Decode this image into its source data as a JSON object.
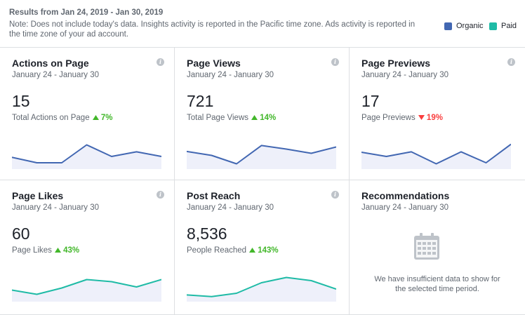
{
  "header": {
    "range_label": "Results from Jan 24, 2019 - Jan 30, 2019",
    "note": "Note: Does not include today's data. Insights activity is reported in the Pacific time zone. Ads activity is reported in the time zone of your ad account.",
    "legend": [
      {
        "label": "Organic",
        "color": "#4267b2"
      },
      {
        "label": "Paid",
        "color": "#1fbba6"
      }
    ]
  },
  "cards": [
    {
      "title": "Actions on Page",
      "date_range": "January 24 - January 30",
      "value": "15",
      "metric_label": "Total Actions on Page",
      "delta": "7%",
      "direction": "up",
      "delta_icon": "triangle-up-icon",
      "color": "#4267b2",
      "series": [
        0.36,
        0.1,
        0.1,
        0.95,
        0.4,
        0.62,
        0.4
      ]
    },
    {
      "title": "Page Views",
      "date_range": "January 24 - January 30",
      "value": "721",
      "metric_label": "Total Page Views",
      "delta": "14%",
      "direction": "up",
      "delta_icon": "triangle-up-icon",
      "color": "#4267b2",
      "series": [
        0.64,
        0.45,
        0.05,
        0.92,
        0.75,
        0.55,
        0.85
      ]
    },
    {
      "title": "Page Previews",
      "date_range": "January 24 - January 30",
      "value": "17",
      "metric_label": "Page Previews",
      "delta": "19%",
      "direction": "down",
      "delta_icon": "triangle-down-icon",
      "color": "#4267b2",
      "series": [
        0.6,
        0.4,
        0.62,
        0.05,
        0.62,
        0.1,
        0.98
      ]
    },
    {
      "title": "Page Likes",
      "date_range": "January 24 - January 30",
      "value": "60",
      "metric_label": "Page Likes",
      "delta": "43%",
      "direction": "up",
      "delta_icon": "triangle-up-icon",
      "color": "#1fbba6",
      "series": [
        0.35,
        0.15,
        0.45,
        0.85,
        0.75,
        0.5,
        0.85
      ]
    },
    {
      "title": "Post Reach",
      "date_range": "January 24 - January 30",
      "value": "8,536",
      "metric_label": "People Reached",
      "delta": "143%",
      "direction": "up",
      "delta_icon": "triangle-up-icon",
      "color": "#1fbba6",
      "series": [
        0.12,
        0.04,
        0.2,
        0.7,
        0.95,
        0.8,
        0.4
      ]
    },
    {
      "title": "Recommendations",
      "date_range": "January 24 - January 30",
      "message": "We have insufficient data to show for the selected time period.",
      "icon": "calendar-icon"
    }
  ]
}
